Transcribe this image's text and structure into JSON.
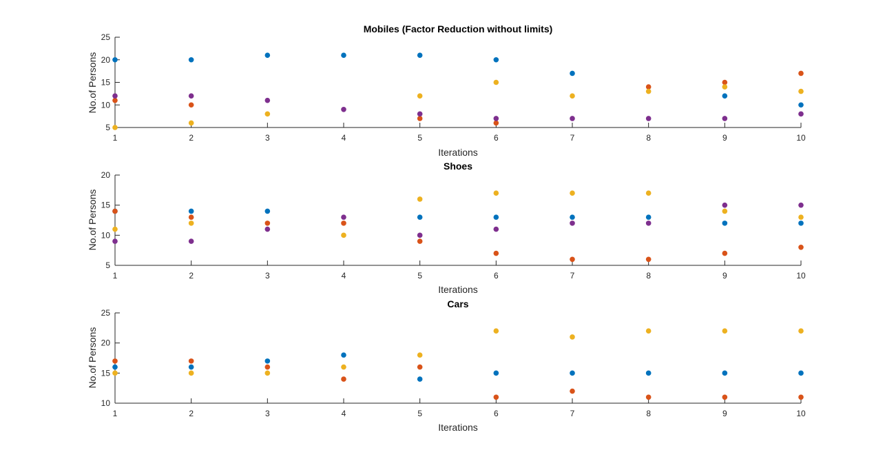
{
  "chart_data": [
    {
      "type": "scatter",
      "title": "Mobiles (Factor Reduction without limits)",
      "xlabel": "Iterations",
      "ylabel": "No.of Persons",
      "xlim": [
        1,
        10
      ],
      "ylim": [
        5,
        25
      ],
      "xticks": [
        1,
        2,
        3,
        4,
        5,
        6,
        7,
        8,
        9,
        10
      ],
      "yticks": [
        5,
        10,
        15,
        20,
        25
      ],
      "grid": false,
      "x": [
        1,
        2,
        3,
        4,
        5,
        6,
        7,
        8,
        9,
        10
      ],
      "series": [
        {
          "color": "#0072BD",
          "values": [
            20,
            20,
            21,
            21,
            21,
            20,
            17,
            null,
            12,
            10
          ]
        },
        {
          "color": "#D95319",
          "values": [
            11,
            10,
            null,
            null,
            7,
            6,
            null,
            14,
            15,
            17
          ]
        },
        {
          "color": "#EDB120",
          "values": [
            5,
            6,
            8,
            null,
            12,
            15,
            12,
            13,
            14,
            13
          ]
        },
        {
          "color": "#7E2F8E",
          "values": [
            12,
            12,
            11,
            9,
            8,
            7,
            7,
            7,
            7,
            8
          ]
        }
      ]
    },
    {
      "type": "scatter",
      "title": "Shoes",
      "xlabel": "Iterations",
      "ylabel": "No.of Persons",
      "xlim": [
        1,
        10
      ],
      "ylim": [
        5,
        20
      ],
      "xticks": [
        1,
        2,
        3,
        4,
        5,
        6,
        7,
        8,
        9,
        10
      ],
      "yticks": [
        5,
        10,
        15,
        20
      ],
      "grid": false,
      "x": [
        1,
        2,
        3,
        4,
        5,
        6,
        7,
        8,
        9,
        10
      ],
      "series": [
        {
          "color": "#0072BD",
          "values": [
            14,
            14,
            14,
            null,
            13,
            13,
            13,
            13,
            12,
            12
          ]
        },
        {
          "color": "#D95319",
          "values": [
            14,
            13,
            12,
            12,
            9,
            7,
            6,
            6,
            7,
            8
          ]
        },
        {
          "color": "#EDB120",
          "values": [
            11,
            12,
            null,
            10,
            16,
            17,
            17,
            17,
            14,
            13
          ]
        },
        {
          "color": "#7E2F8E",
          "values": [
            9,
            9,
            11,
            13,
            10,
            11,
            12,
            12,
            15,
            15
          ]
        }
      ]
    },
    {
      "type": "scatter",
      "title": "Cars",
      "xlabel": "Iterations",
      "ylabel": "No.of Persons",
      "xlim": [
        1,
        10
      ],
      "ylim": [
        10,
        25
      ],
      "xticks": [
        1,
        2,
        3,
        4,
        5,
        6,
        7,
        8,
        9,
        10
      ],
      "yticks": [
        10,
        15,
        20,
        25
      ],
      "grid": false,
      "x": [
        1,
        2,
        3,
        4,
        5,
        6,
        7,
        8,
        9,
        10
      ],
      "series": [
        {
          "color": "#0072BD",
          "values": [
            16,
            16,
            17,
            18,
            14,
            15,
            15,
            15,
            15,
            15
          ]
        },
        {
          "color": "#D95319",
          "values": [
            17,
            17,
            16,
            14,
            16,
            11,
            12,
            11,
            11,
            11
          ]
        },
        {
          "color": "#EDB120",
          "values": [
            15,
            15,
            15,
            16,
            18,
            22,
            21,
            22,
            22,
            22
          ]
        }
      ]
    }
  ]
}
